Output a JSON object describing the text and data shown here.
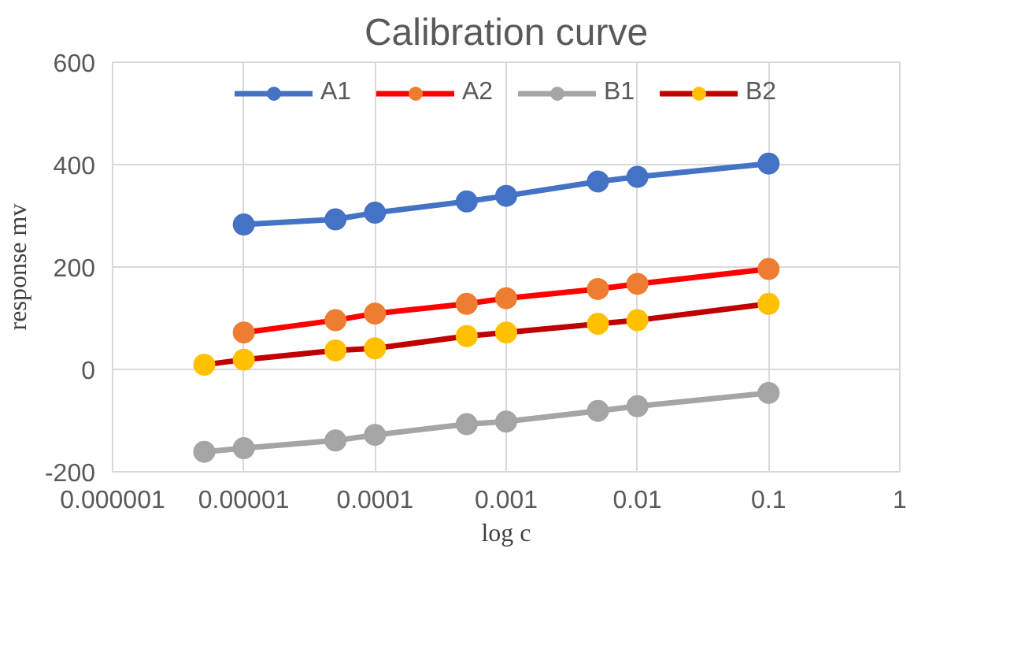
{
  "chart_data": {
    "type": "line",
    "title": "Calibration curve",
    "xlabel": "log c",
    "ylabel": "response mv",
    "log": "x",
    "grid": true,
    "legend": "top",
    "marker": "circle",
    "line_style": "solid",
    "xlim": [
      1e-06,
      1
    ],
    "xticks": [
      {
        "value": 1e-06,
        "label": "0.000001"
      },
      {
        "value": 1e-05,
        "label": "0.00001"
      },
      {
        "value": 0.0001,
        "label": "0.0001"
      },
      {
        "value": 0.001,
        "label": "0.001"
      },
      {
        "value": 0.01,
        "label": "0.01"
      },
      {
        "value": 0.1,
        "label": "0.1"
      },
      1
    ],
    "ylim": [
      -200,
      600
    ],
    "yticks": [
      -200,
      0,
      200,
      400,
      600
    ],
    "series": [
      {
        "name": "A1",
        "color": "#4472c4",
        "colors": [
          "#4472c4",
          "#4472c4",
          "#4472c4",
          "#4472c4",
          "#4472c4",
          "#4472c4",
          "#4472c4",
          "#4472c4"
        ],
        "x": [
          1e-05,
          5e-05,
          0.0001,
          0.0005,
          0.001,
          0.005,
          0.01,
          0.1
        ],
        "values": [
          283,
          293,
          306,
          328,
          339,
          367,
          376,
          402
        ]
      },
      {
        "name": "A2",
        "color": "#ff0000",
        "colors": [
          "#ed7d31",
          "#ed7d31",
          "#ed7d31",
          "#ed7d31",
          "#ed7d31",
          "#ed7d31",
          "#ed7d31",
          "#ed7d31"
        ],
        "x": [
          1e-05,
          5e-05,
          0.0001,
          0.0005,
          0.001,
          0.005,
          0.01,
          0.1
        ],
        "values": [
          72,
          96,
          109,
          128,
          139,
          157,
          167,
          196
        ]
      },
      {
        "name": "B1",
        "color": "#a5a5a5",
        "colors": [
          "#a5a5a5",
          "#a5a5a5",
          "#a5a5a5",
          "#a5a5a5",
          "#a5a5a5",
          "#a5a5a5",
          "#a5a5a5",
          "#a5a5a5",
          "#a5a5a5"
        ],
        "x": [
          5e-06,
          1e-05,
          5e-05,
          0.0001,
          0.0005,
          0.001,
          0.005,
          0.01,
          0.1
        ],
        "values": [
          -161,
          -154,
          -139,
          -128,
          -107,
          -102,
          -81,
          -72,
          -46
        ]
      },
      {
        "name": "B2",
        "color": "#c00000",
        "colors": [
          "#ffc000",
          "#ffc000",
          "#ffc000",
          "#ffc000",
          "#ffc000",
          "#ffc000",
          "#ffc000",
          "#ffc000",
          "#ffc000"
        ],
        "x": [
          5e-06,
          1e-05,
          5e-05,
          0.0001,
          0.0005,
          0.001,
          0.005,
          0.01,
          0.1
        ],
        "values": [
          9,
          19,
          37,
          41,
          65,
          72,
          89,
          96,
          128
        ]
      }
    ]
  }
}
